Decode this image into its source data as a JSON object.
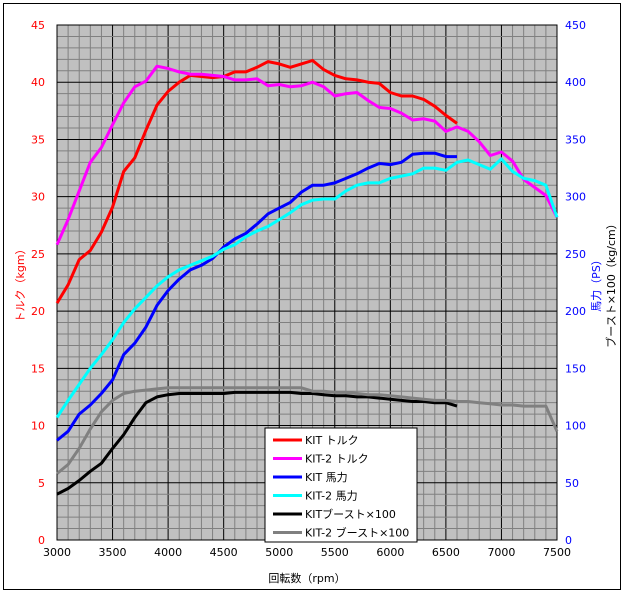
{
  "chart_data": {
    "type": "line",
    "xlabel": "回転数（rpm）",
    "ylabel_left": "トルク（kgm）",
    "ylabel_right_1": "馬力（PS）",
    "ylabel_right_2": "ブースト×100（kg/cm）",
    "xlim": [
      3000,
      7500
    ],
    "ylim_left": [
      0,
      45
    ],
    "ylim_right": [
      0,
      450
    ],
    "x_ticks": [
      "3000",
      "3500",
      "4000",
      "4500",
      "5000",
      "5500",
      "6000",
      "6500",
      "7000",
      "7500"
    ],
    "y_left_ticks": [
      "0",
      "5",
      "10",
      "15",
      "20",
      "25",
      "30",
      "35",
      "40",
      "45"
    ],
    "y_right_ticks": [
      "0",
      "50",
      "100",
      "150",
      "200",
      "250",
      "300",
      "350",
      "400",
      "450"
    ],
    "grid": true,
    "legend_position": "bottom-center",
    "colors": {
      "left_axis": "#ff0000",
      "right_axis": "#0000ff",
      "plot_bg": "#c0c0c0"
    },
    "series": [
      {
        "name": "KIT トルク",
        "axis": "left",
        "color": "#ff0000",
        "x_start": 3000,
        "x_step": 100,
        "values": [
          20.7,
          22.3,
          24.5,
          25.3,
          26.9,
          29.1,
          32.2,
          33.4,
          35.8,
          38,
          39.2,
          40,
          40.6,
          40.5,
          40.4,
          40.5,
          40.9,
          40.9,
          41.3,
          41.8,
          41.6,
          41.3,
          41.6,
          41.9,
          41.1,
          40.6,
          40.3,
          40.2,
          40,
          39.9,
          39.1,
          38.8,
          38.8,
          38.5,
          37.9,
          37.1,
          36.4
        ]
      },
      {
        "name": "KIT-2 トルク",
        "axis": "left",
        "color": "#ff00ff",
        "x_start": 3000,
        "x_step": 100,
        "values": [
          25.8,
          28,
          30.5,
          33,
          34.3,
          36.3,
          38.2,
          39.6,
          40.1,
          41.4,
          41.2,
          40.9,
          40.7,
          40.7,
          40.6,
          40.5,
          40.2,
          40.2,
          40.3,
          39.7,
          39.8,
          39.6,
          39.7,
          40,
          39.6,
          38.8,
          39,
          39.1,
          38.4,
          37.8,
          37.7,
          37.3,
          36.7,
          36.8,
          36.6,
          35.7,
          36.1,
          35.7,
          34.8,
          33.6,
          33.9,
          33.1,
          31.5,
          30.8,
          30.1,
          28.2
        ]
      },
      {
        "name": "KIT 馬力",
        "axis": "right",
        "color": "#0000ff",
        "x_start": 3000,
        "x_step": 100,
        "values": [
          87,
          95,
          110,
          118,
          128,
          140,
          162,
          172,
          186,
          205,
          218,
          228,
          236,
          240,
          246,
          256,
          263,
          268,
          276,
          285,
          290,
          295,
          304,
          310,
          310,
          312,
          316,
          320,
          325,
          329,
          328,
          330,
          337,
          338,
          338,
          335,
          335
        ]
      },
      {
        "name": "KIT-2 馬力",
        "axis": "right",
        "color": "#00ffff",
        "x_start": 3000,
        "x_step": 100,
        "values": [
          107,
          122,
          136,
          150,
          162,
          175,
          190,
          202,
          212,
          222,
          230,
          236,
          240,
          244,
          248,
          254,
          258,
          265,
          270,
          274,
          280,
          286,
          293,
          297,
          298,
          298,
          305,
          310,
          312,
          312,
          316,
          318,
          320,
          325,
          325,
          323,
          330,
          332,
          328,
          324,
          333,
          322,
          316,
          314,
          310,
          282
        ]
      },
      {
        "name": "KITブースト×100",
        "axis": "right",
        "color": "#000000",
        "x_start": 3000,
        "x_step": 100,
        "values": [
          40,
          45,
          52,
          60,
          67,
          80,
          92,
          107,
          120,
          125,
          127,
          128,
          128,
          128,
          128,
          128,
          129,
          129,
          129,
          129,
          129,
          129,
          128,
          128,
          127,
          126,
          126,
          125,
          125,
          124,
          123,
          122,
          121,
          121,
          120,
          120,
          117
        ]
      },
      {
        "name": "KIT-2 ブースト×100",
        "axis": "right",
        "color": "#808080",
        "x_start": 3000,
        "x_step": 100,
        "values": [
          58,
          66,
          80,
          97,
          112,
          122,
          128,
          130,
          131,
          132,
          133,
          133,
          133,
          133,
          133,
          133,
          133,
          133,
          133,
          133,
          133,
          133,
          133,
          130,
          130,
          129,
          129,
          128,
          127,
          127,
          126,
          125,
          124,
          123,
          122,
          122,
          121,
          121,
          120,
          119,
          118,
          118,
          117,
          117,
          117,
          95
        ]
      }
    ]
  }
}
